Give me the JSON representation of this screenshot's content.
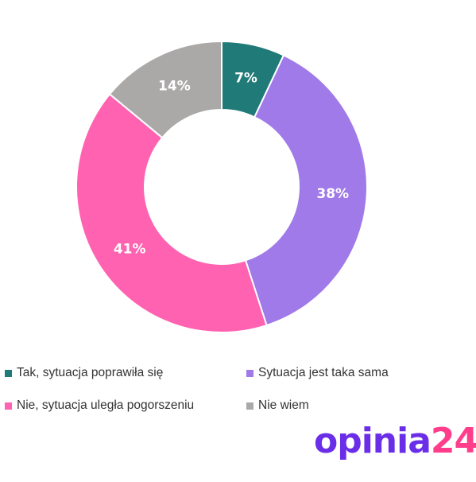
{
  "chart_data": {
    "type": "pie",
    "donut": true,
    "title": "",
    "slices": [
      {
        "label": "Tak, sytuacja poprawiła się",
        "value": 7,
        "display": "7%",
        "color": "#1f7a78"
      },
      {
        "label": "Sytuacja jest taka sama",
        "value": 38,
        "display": "38%",
        "color": "#a07ae8"
      },
      {
        "label": "Nie, sytuacja uległa pogorszeniu",
        "value": 41,
        "display": "41%",
        "color": "#ff62b0"
      },
      {
        "label": "Nie wiem",
        "value": 14,
        "display": "14%",
        "color": "#aba8a8"
      }
    ],
    "legend_placement": "bottom"
  },
  "logo": {
    "text_a": "opinia",
    "text_b": "24"
  }
}
